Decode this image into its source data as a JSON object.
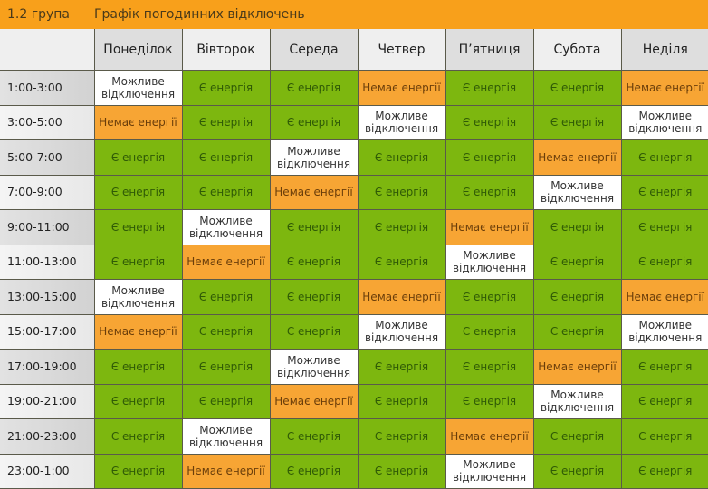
{
  "header": {
    "group": "1.2 група",
    "title": "Графік погодинних відключень",
    "accent_color": "#F8A01B"
  },
  "legend": {
    "yes": {
      "label": "Є енергія",
      "color": "#7DB70F"
    },
    "no": {
      "label": "Немає енергії",
      "color": "#F7A534"
    },
    "maybe": {
      "label": "Можливе відключення",
      "color": "#FFFFFF"
    }
  },
  "days": [
    "Понеділок",
    "Вівторок",
    "Середа",
    "Четвер",
    "П’ятниця",
    "Субота",
    "Неділя"
  ],
  "rows": [
    {
      "time": "1:00-3:00",
      "cells": [
        "maybe",
        "yes",
        "yes",
        "no",
        "yes",
        "yes",
        "no"
      ]
    },
    {
      "time": "3:00-5:00",
      "cells": [
        "no",
        "yes",
        "yes",
        "maybe",
        "yes",
        "yes",
        "maybe"
      ]
    },
    {
      "time": "5:00-7:00",
      "cells": [
        "yes",
        "yes",
        "maybe",
        "yes",
        "yes",
        "no",
        "yes"
      ]
    },
    {
      "time": "7:00-9:00",
      "cells": [
        "yes",
        "yes",
        "no",
        "yes",
        "yes",
        "maybe",
        "yes"
      ]
    },
    {
      "time": "9:00-11:00",
      "cells": [
        "yes",
        "maybe",
        "yes",
        "yes",
        "no",
        "yes",
        "yes"
      ]
    },
    {
      "time": "11:00-13:00",
      "cells": [
        "yes",
        "no",
        "yes",
        "yes",
        "maybe",
        "yes",
        "yes"
      ]
    },
    {
      "time": "13:00-15:00",
      "cells": [
        "maybe",
        "yes",
        "yes",
        "no",
        "yes",
        "yes",
        "no"
      ]
    },
    {
      "time": "15:00-17:00",
      "cells": [
        "no",
        "yes",
        "yes",
        "maybe",
        "yes",
        "yes",
        "maybe"
      ]
    },
    {
      "time": "17:00-19:00",
      "cells": [
        "yes",
        "yes",
        "maybe",
        "yes",
        "yes",
        "no",
        "yes"
      ]
    },
    {
      "time": "19:00-21:00",
      "cells": [
        "yes",
        "yes",
        "no",
        "yes",
        "yes",
        "maybe",
        "yes"
      ]
    },
    {
      "time": "21:00-23:00",
      "cells": [
        "yes",
        "maybe",
        "yes",
        "yes",
        "no",
        "yes",
        "yes"
      ]
    },
    {
      "time": "23:00-1:00",
      "cells": [
        "yes",
        "no",
        "yes",
        "yes",
        "maybe",
        "yes",
        "yes"
      ]
    }
  ]
}
